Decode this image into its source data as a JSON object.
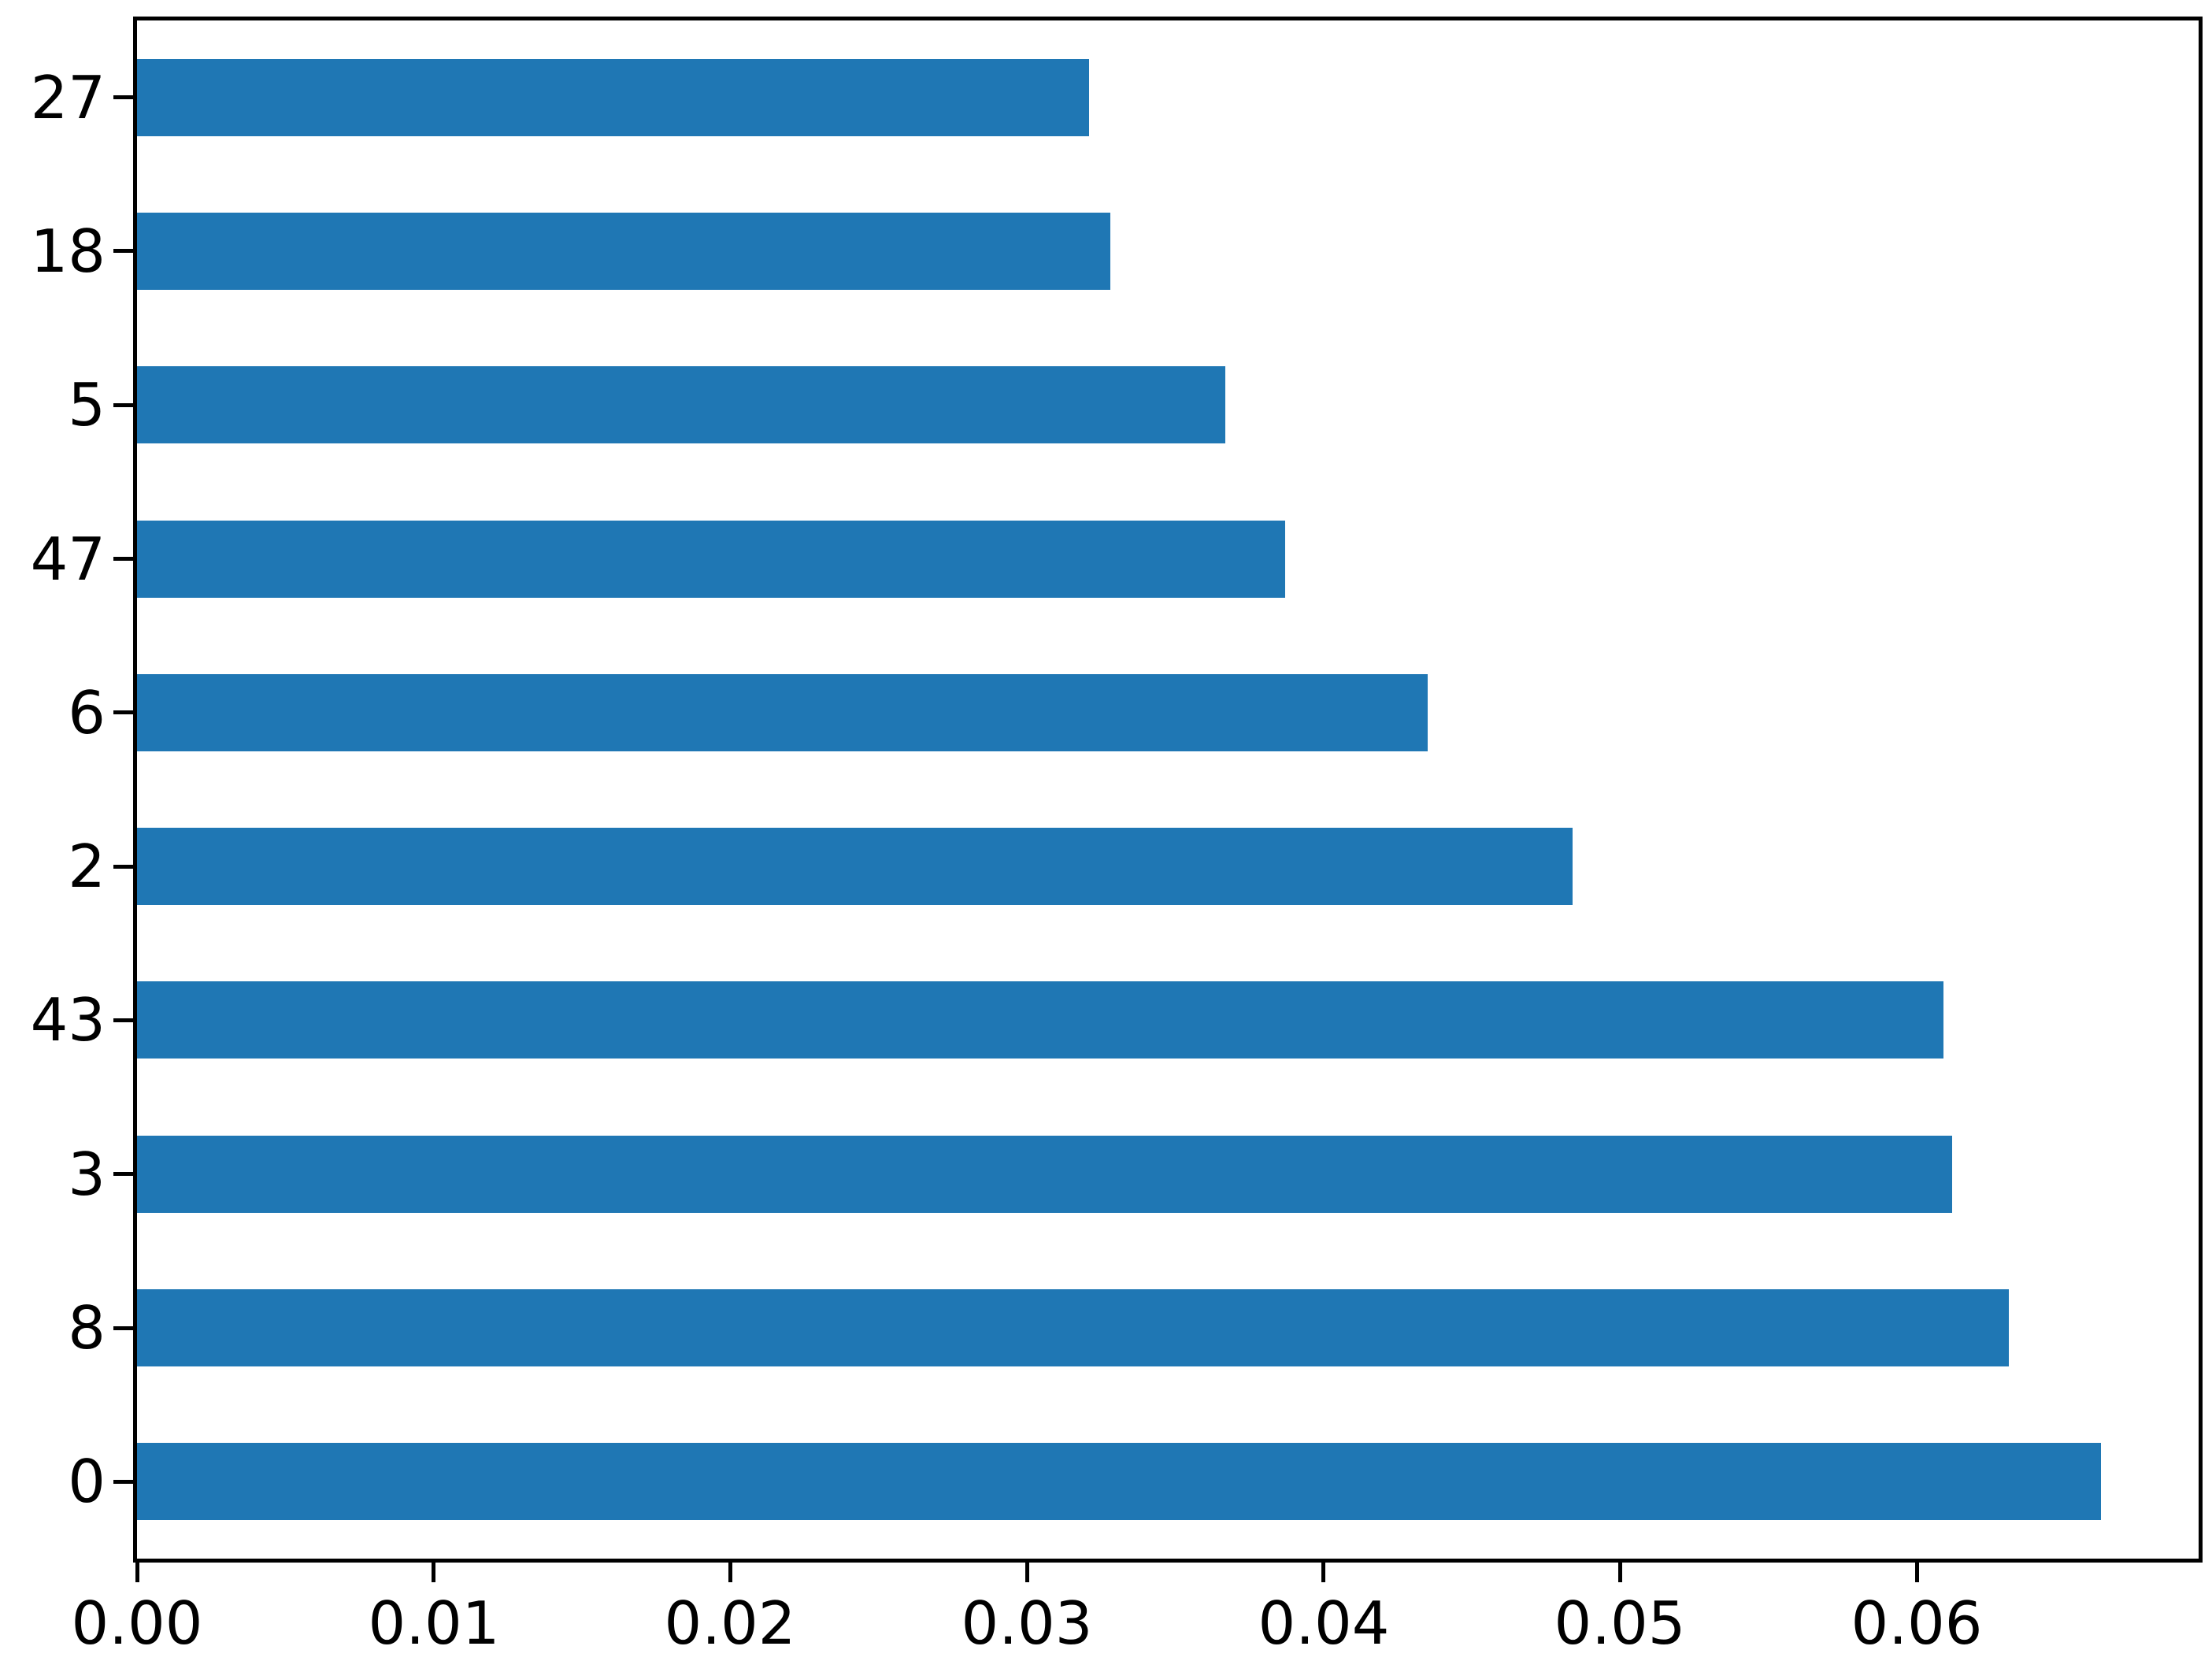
{
  "chart_data": {
    "type": "bar",
    "orientation": "horizontal",
    "title": "",
    "xlabel": "",
    "ylabel": "",
    "categories_top_to_bottom": [
      "27",
      "18",
      "5",
      "47",
      "6",
      "2",
      "43",
      "3",
      "8",
      "0"
    ],
    "values_top_to_bottom": [
      0.0321,
      0.0328,
      0.0367,
      0.0387,
      0.0435,
      0.0484,
      0.0609,
      0.0612,
      0.0631,
      0.0662
    ],
    "x_ticks": [
      {
        "value": 0.0,
        "label": "0.00"
      },
      {
        "value": 0.01,
        "label": "0.01"
      },
      {
        "value": 0.02,
        "label": "0.02"
      },
      {
        "value": 0.03,
        "label": "0.03"
      },
      {
        "value": 0.04,
        "label": "0.04"
      },
      {
        "value": 0.05,
        "label": "0.05"
      },
      {
        "value": 0.06,
        "label": "0.06"
      }
    ],
    "xlim": [
      0.0,
      0.0695
    ],
    "bar_fraction_of_slot": 0.5,
    "grid": false,
    "legend": null,
    "bar_color": "#1f77b4",
    "axis_color": "#000000",
    "background_color": "#ffffff"
  }
}
